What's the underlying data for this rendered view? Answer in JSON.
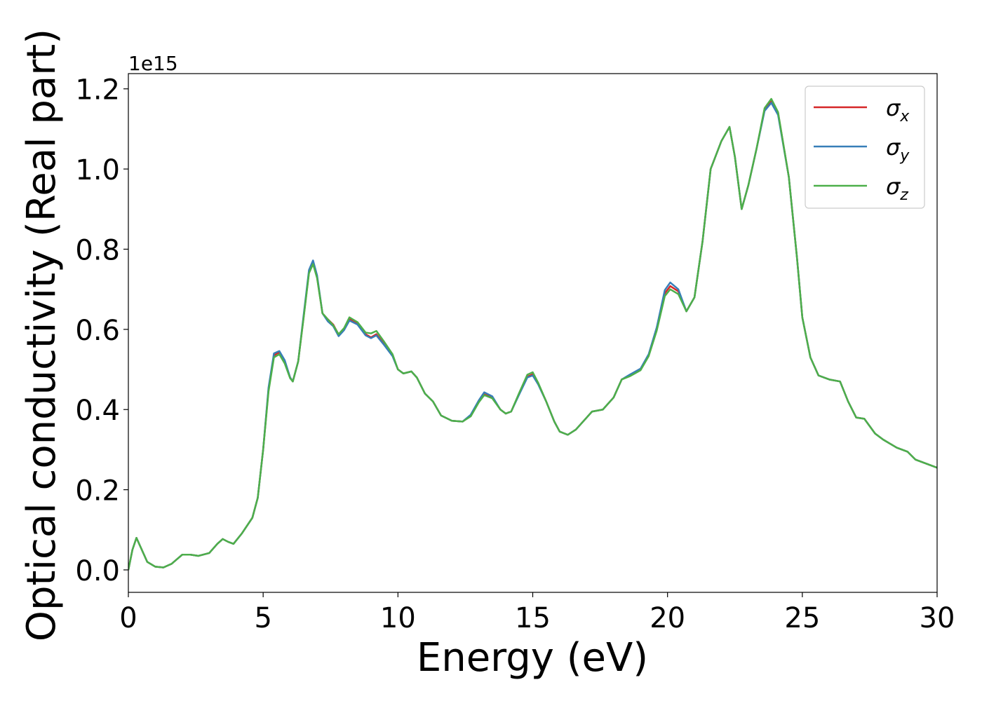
{
  "chart_data": {
    "type": "line",
    "xlabel": "Energy (eV)",
    "ylabel": "Optical conductivity (Real part)",
    "y_offset_text": "1e15",
    "xlim": [
      0,
      30
    ],
    "xticks": [
      0,
      5,
      10,
      15,
      20,
      25,
      30
    ],
    "ylim": [
      -0.056,
      1.238
    ],
    "yticks": [
      {
        "value": 0,
        "label": "0.0"
      },
      0.2,
      0.4,
      0.6,
      0.8,
      {
        "value": 1,
        "label": "1.0"
      },
      1.2
    ],
    "legend": "upper right",
    "x": [
      0,
      0.15,
      0.3,
      0.5,
      0.7,
      1.0,
      1.3,
      1.6,
      2.0,
      2.3,
      2.6,
      3.0,
      3.3,
      3.5,
      3.7,
      3.9,
      4.2,
      4.6,
      4.8,
      5.0,
      5.2,
      5.4,
      5.6,
      5.8,
      6.0,
      6.1,
      6.3,
      6.5,
      6.7,
      6.85,
      7.0,
      7.2,
      7.4,
      7.6,
      7.8,
      8.0,
      8.2,
      8.5,
      8.8,
      9.0,
      9.2,
      9.5,
      9.8,
      10.0,
      10.2,
      10.5,
      10.7,
      11.0,
      11.3,
      11.6,
      12.0,
      12.4,
      12.7,
      13.0,
      13.2,
      13.5,
      13.8,
      14.0,
      14.2,
      14.5,
      14.8,
      15.0,
      15.2,
      15.5,
      15.8,
      16.0,
      16.3,
      16.6,
      17.0,
      17.2,
      17.6,
      18.0,
      18.3,
      18.6,
      19.0,
      19.3,
      19.6,
      19.9,
      20.1,
      20.4,
      20.7,
      21.0,
      21.3,
      21.6,
      22.0,
      22.3,
      22.5,
      22.75,
      23.0,
      23.3,
      23.6,
      23.85,
      24.1,
      24.5,
      24.8,
      25.0,
      25.3,
      25.6,
      26.0,
      26.4,
      26.7,
      27.0,
      27.3,
      27.7,
      28.0,
      28.5,
      28.9,
      29.2,
      29.6,
      30.0
    ],
    "series": [
      {
        "name": "σx",
        "color": "#d62728",
        "values": [
          0,
          0.05,
          0.08,
          0.05,
          0.02,
          0.008,
          0.006,
          0.015,
          0.038,
          0.038,
          0.035,
          0.042,
          0.065,
          0.077,
          0.07,
          0.065,
          0.09,
          0.13,
          0.18,
          0.3,
          0.45,
          0.535,
          0.543,
          0.52,
          0.48,
          0.47,
          0.52,
          0.63,
          0.742,
          0.767,
          0.73,
          0.64,
          0.625,
          0.612,
          0.587,
          0.6,
          0.627,
          0.615,
          0.588,
          0.58,
          0.588,
          0.562,
          0.535,
          0.5,
          0.49,
          0.495,
          0.48,
          0.44,
          0.42,
          0.385,
          0.372,
          0.37,
          0.385,
          0.42,
          0.438,
          0.43,
          0.4,
          0.39,
          0.395,
          0.44,
          0.482,
          0.488,
          0.465,
          0.42,
          0.37,
          0.345,
          0.337,
          0.35,
          0.38,
          0.395,
          0.4,
          0.43,
          0.475,
          0.485,
          0.5,
          0.535,
          0.6,
          0.69,
          0.708,
          0.695,
          0.645,
          0.68,
          0.82,
          1.0,
          1.07,
          1.105,
          1.03,
          0.9,
          0.96,
          1.05,
          1.148,
          1.17,
          1.14,
          0.98,
          0.78,
          0.63,
          0.53,
          0.485,
          0.475,
          0.47,
          0.42,
          0.38,
          0.377,
          0.34,
          0.325,
          0.305,
          0.295,
          0.275,
          0.265,
          0.255
        ]
      },
      {
        "name": "σy",
        "color": "#377eb8",
        "values": [
          0,
          0.05,
          0.08,
          0.05,
          0.02,
          0.008,
          0.006,
          0.015,
          0.038,
          0.038,
          0.035,
          0.042,
          0.065,
          0.077,
          0.07,
          0.065,
          0.09,
          0.13,
          0.18,
          0.3,
          0.455,
          0.54,
          0.546,
          0.523,
          0.48,
          0.47,
          0.52,
          0.635,
          0.748,
          0.772,
          0.735,
          0.64,
          0.62,
          0.608,
          0.583,
          0.598,
          0.622,
          0.612,
          0.585,
          0.578,
          0.585,
          0.56,
          0.533,
          0.5,
          0.49,
          0.495,
          0.48,
          0.44,
          0.42,
          0.385,
          0.372,
          0.37,
          0.387,
          0.423,
          0.443,
          0.433,
          0.4,
          0.39,
          0.395,
          0.438,
          0.48,
          0.485,
          0.463,
          0.42,
          0.37,
          0.345,
          0.337,
          0.35,
          0.38,
          0.395,
          0.4,
          0.43,
          0.475,
          0.487,
          0.502,
          0.538,
          0.605,
          0.698,
          0.717,
          0.7,
          0.645,
          0.68,
          0.82,
          1.0,
          1.07,
          1.105,
          1.03,
          0.9,
          0.96,
          1.05,
          1.145,
          1.165,
          1.135,
          0.98,
          0.78,
          0.63,
          0.53,
          0.485,
          0.475,
          0.47,
          0.42,
          0.38,
          0.377,
          0.34,
          0.325,
          0.305,
          0.295,
          0.275,
          0.265,
          0.255
        ]
      },
      {
        "name": "σz",
        "color": "#4daf4a",
        "values": [
          0,
          0.05,
          0.08,
          0.05,
          0.02,
          0.008,
          0.006,
          0.015,
          0.038,
          0.038,
          0.035,
          0.042,
          0.065,
          0.077,
          0.07,
          0.065,
          0.09,
          0.13,
          0.18,
          0.3,
          0.445,
          0.53,
          0.538,
          0.515,
          0.478,
          0.47,
          0.52,
          0.628,
          0.74,
          0.763,
          0.728,
          0.64,
          0.625,
          0.61,
          0.588,
          0.603,
          0.63,
          0.618,
          0.592,
          0.59,
          0.596,
          0.568,
          0.538,
          0.5,
          0.49,
          0.495,
          0.48,
          0.44,
          0.42,
          0.385,
          0.372,
          0.37,
          0.383,
          0.418,
          0.436,
          0.428,
          0.4,
          0.39,
          0.395,
          0.442,
          0.487,
          0.493,
          0.467,
          0.42,
          0.37,
          0.345,
          0.337,
          0.35,
          0.38,
          0.395,
          0.4,
          0.43,
          0.475,
          0.483,
          0.498,
          0.533,
          0.597,
          0.683,
          0.7,
          0.688,
          0.645,
          0.68,
          0.82,
          1.0,
          1.07,
          1.105,
          1.03,
          0.9,
          0.96,
          1.05,
          1.152,
          1.175,
          1.142,
          0.98,
          0.78,
          0.63,
          0.53,
          0.485,
          0.475,
          0.47,
          0.42,
          0.38,
          0.377,
          0.34,
          0.325,
          0.305,
          0.295,
          0.275,
          0.265,
          0.255
        ]
      }
    ]
  }
}
